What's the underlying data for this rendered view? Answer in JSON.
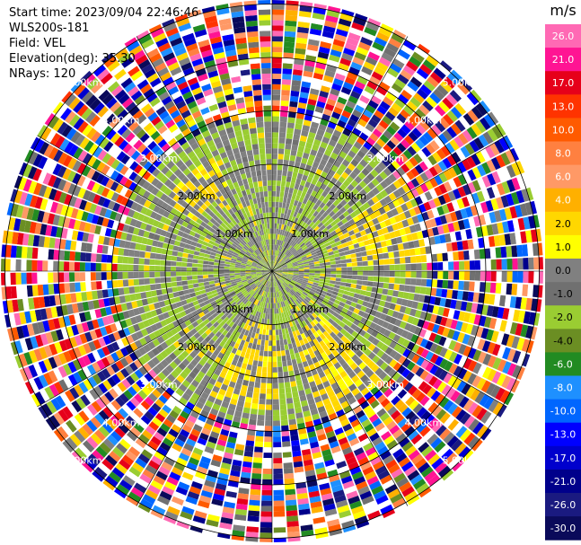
{
  "info": {
    "start_time": "Start time: 2023/09/04 22:46:46",
    "instrument": "WLS200s-181",
    "field": "Field: VEL",
    "elevation": "Elevation(deg): 35.30",
    "nrays": "NRays: 120"
  },
  "colorbar": {
    "unit": "m/s",
    "ticks": [
      "26.0",
      "21.0",
      "17.0",
      "13.0",
      "10.0",
      "8.0",
      "6.0",
      "4.0",
      "2.0",
      "1.0",
      "0.0",
      "-1.0",
      "-2.0",
      "-4.0",
      "-6.0",
      "-8.0",
      "-10.0",
      "-13.0",
      "-17.0",
      "-21.0",
      "-26.0",
      "-30.0"
    ],
    "colors": [
      "#ff69b4",
      "#ff1493",
      "#e6001a",
      "#ff3300",
      "#ff5a00",
      "#ff8040",
      "#ff9966",
      "#ffb000",
      "#ffd700",
      "#ffff00",
      "#808080",
      "#707070",
      "#9acd32",
      "#6b8e23",
      "#228b22",
      "#1e90ff",
      "#0066ff",
      "#0000ff",
      "#0000cd",
      "#00008b",
      "#1a1a80",
      "#0a0a5a"
    ]
  },
  "chart_data": {
    "type": "heatmap",
    "projection": "polar (PPI scan)",
    "field": "VEL",
    "unit": "m/s",
    "nrays": 120,
    "range_ring_labels": [
      "1.00km",
      "2.00km",
      "3.00km",
      "4.00km",
      "5.00km"
    ],
    "range_rings_km": [
      1,
      2,
      3,
      4,
      5
    ],
    "value_range": [
      -30.0,
      26.0
    ],
    "observation": "inner region (< ~3 km) mostly 0 to -2 m/s (grey/green) with patches of +1 to +2 m/s (yellow); outer region (> ~3 km) noisy values spanning full range"
  }
}
